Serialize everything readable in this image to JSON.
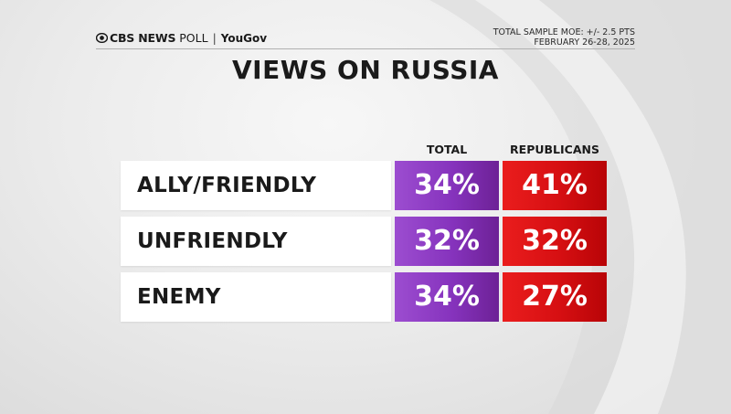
{
  "header": {
    "brand_bold": "CBS NEWS",
    "brand_poll": "POLL",
    "separator": "|",
    "partner": "YouGov",
    "moe": "TOTAL SAMPLE MOE: +/- 2.5 PTS",
    "dates": "FEBRUARY 26-28, 2025"
  },
  "title": "VIEWS ON RUSSIA",
  "colors": {
    "total": "#8a38c2",
    "republicans": "#d80f12"
  },
  "chart_data": {
    "type": "table",
    "title": "VIEWS ON RUSSIA",
    "columns": [
      "TOTAL",
      "REPUBLICANS"
    ],
    "categories": [
      "ALLY/FRIENDLY",
      "UNFRIENDLY",
      "ENEMY"
    ],
    "series": [
      {
        "name": "TOTAL",
        "values": [
          34,
          32,
          34
        ]
      },
      {
        "name": "REPUBLICANS",
        "values": [
          41,
          32,
          27
        ]
      }
    ],
    "display": {
      "total": [
        "34%",
        "32%",
        "34%"
      ],
      "republicans": [
        "41%",
        "32%",
        "27%"
      ]
    }
  }
}
